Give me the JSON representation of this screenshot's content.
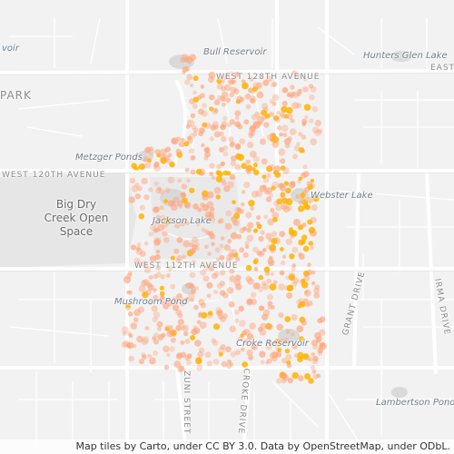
{
  "map": {
    "labels": {
      "voir": "voir",
      "bull_reservoir": "Bull Reservoir",
      "hunters_glen_lake": "Hunters Glen Lake",
      "east": "EAST",
      "park": "PARK",
      "west_128th_avenue": "WEST 128TH AVENUE",
      "metzger_ponds": "Metzger Ponds",
      "west_120th_avenue": "WEST 120TH AVENUE",
      "webster_lake": "Webster Lake",
      "big_dry_creek": "Big Dry Creek Open Space",
      "jackson_lake": "Jackson Lake",
      "west_112th_avenue": "WEST 112TH AVENUE",
      "mushroom_pond": "Mushroom Pond",
      "grant_drive": "GRANT DRIVE",
      "irma_drive": "IRMA DRIVE",
      "croke_reservoir": "Croke Reservoir",
      "zuni_street": "ZUNI STREET",
      "croke_drive": "CROKE DRIVE",
      "lambertson_pond": "Lambertson Pond"
    },
    "attribution": "Map tiles by Carto, under CC BY 3.0. Data by OpenStreetMap, under ODbL.",
    "colors": {
      "background": "#f2f2f2",
      "road": "#ffffff",
      "water": "#dcdcdc",
      "park": "#e6e6e6",
      "point_light": "#ffa47a",
      "point_dark": "#ffb400"
    }
  }
}
